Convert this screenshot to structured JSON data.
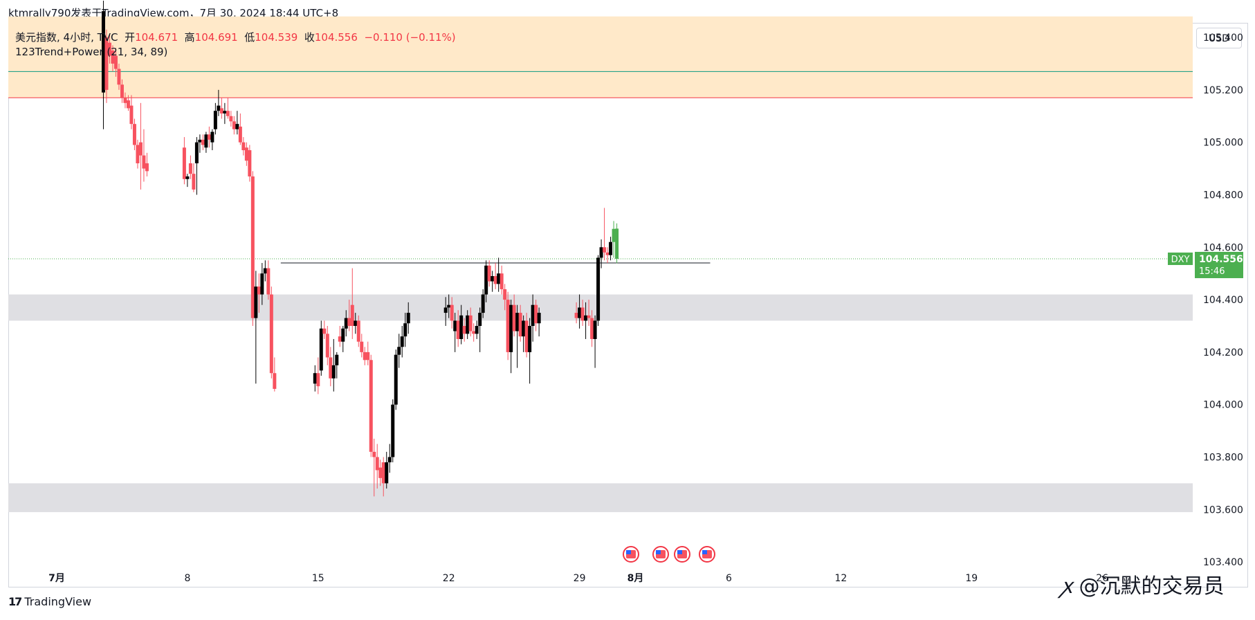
{
  "meta": {
    "title_line": "ktmrally790发表于TradingView.com，7月 30, 2024 18:44 UTC+8"
  },
  "legend": {
    "symbol": "美元指数, 4小时, TVC",
    "open_label": "开",
    "open": "104.671",
    "high_label": "高",
    "high": "104.691",
    "low_label": "低",
    "low": "104.539",
    "close_label": "收",
    "close": "104.556",
    "change": "−0.110 (−0.11%)",
    "indicator": "123Trend+Power (21, 34, 89)"
  },
  "currency_button": "USD",
  "price_tag": {
    "symbol": "DXY",
    "price": "104.556",
    "countdown": "15:46"
  },
  "brand": "TradingView",
  "watermark": "@沉默的交易员",
  "colors": {
    "up": "#000000",
    "down": "#f7525f",
    "last_up": "#4caf50",
    "price_tag": "#4caf50",
    "resistance_zone": "#ffe9c9",
    "support_zone": "#dfdfe3"
  },
  "icons": [
    "us-flag-event-icon",
    "us-flag-event-icon",
    "us-flag-event-icon",
    "us-flag-event-icon"
  ],
  "chart_data": {
    "type": "candlestick",
    "title": "",
    "xlabel": "",
    "ylabel": "",
    "ylim": [
      103.36,
      105.54
    ],
    "y_ticks": [
      "105.400",
      "105.200",
      "105.000",
      "104.800",
      "104.600",
      "104.400",
      "104.200",
      "104.000",
      "103.800",
      "103.600",
      "103.400"
    ],
    "x_tick_labels": [
      "7月",
      "8",
      "15",
      "22",
      "29",
      "8月",
      "6",
      "12",
      "19",
      "26"
    ],
    "x_tick_dates": [
      "2024-07-01",
      "2024-07-08",
      "2024-07-15",
      "2024-07-22",
      "2024-07-29",
      "2024-08-01",
      "2024-08-06",
      "2024-08-12",
      "2024-08-19",
      "2024-08-26"
    ],
    "zones": [
      {
        "kind": "resistance",
        "from": 105.17,
        "to": 105.48
      },
      {
        "kind": "support",
        "from": 104.32,
        "to": 104.42
      },
      {
        "kind": "support",
        "from": 103.59,
        "to": 103.7
      }
    ],
    "horizontal_lines": [
      {
        "price": 105.27,
        "color": "#089981"
      },
      {
        "price": 105.17,
        "color": "#f23645"
      },
      {
        "price": 104.556,
        "color": "#4caf50",
        "style": "dotted"
      },
      {
        "price": 104.54,
        "color": "#131722",
        "from": "2024-07-13",
        "to": "2024-08-05"
      }
    ],
    "ohlc_columns": [
      "date",
      "open",
      "high",
      "low",
      "close"
    ],
    "ohlc": [
      [
        "2024-07-03 12:00",
        105.19,
        105.54,
        105.05,
        105.5
      ],
      [
        "2024-07-03 16:00",
        105.4,
        105.43,
        105.15,
        105.2
      ],
      [
        "2024-07-03 20:00",
        105.38,
        105.41,
        105.3,
        105.33
      ],
      [
        "2024-07-04 00:00",
        105.35,
        105.37,
        105.27,
        105.3
      ],
      [
        "2024-07-04 04:00",
        105.33,
        105.36,
        105.25,
        105.28
      ],
      [
        "2024-07-04 08:00",
        105.28,
        105.3,
        105.2,
        105.22
      ],
      [
        "2024-07-04 12:00",
        105.22,
        105.24,
        105.15,
        105.17
      ],
      [
        "2024-07-04 16:00",
        105.17,
        105.19,
        105.13,
        105.15
      ],
      [
        "2024-07-04 20:00",
        105.16,
        105.18,
        105.12,
        105.13
      ],
      [
        "2024-07-05 00:00",
        105.14,
        105.18,
        105.05,
        105.07
      ],
      [
        "2024-07-05 04:00",
        105.07,
        105.09,
        104.97,
        104.99
      ],
      [
        "2024-07-05 08:00",
        104.99,
        105.01,
        104.9,
        104.92
      ],
      [
        "2024-07-05 12:00",
        105.0,
        105.15,
        104.82,
        104.95
      ],
      [
        "2024-07-05 16:00",
        104.95,
        105.05,
        104.85,
        104.9
      ],
      [
        "2024-07-05 20:00",
        104.92,
        104.96,
        104.87,
        104.89
      ],
      [
        "2024-07-07 20:00",
        104.98,
        105.02,
        104.84,
        104.86
      ],
      [
        "2024-07-08 00:00",
        104.86,
        104.88,
        104.83,
        104.87
      ],
      [
        "2024-07-08 04:00",
        104.92,
        104.95,
        104.86,
        104.88
      ],
      [
        "2024-07-08 08:00",
        104.88,
        104.92,
        104.81,
        104.82
      ],
      [
        "2024-07-08 12:00",
        104.92,
        105.02,
        104.8,
        105.0
      ],
      [
        "2024-07-08 16:00",
        105.0,
        105.03,
        104.96,
        105.01
      ],
      [
        "2024-07-08 20:00",
        105.01,
        105.03,
        104.97,
        104.99
      ],
      [
        "2024-07-09 00:00",
        104.98,
        105.04,
        104.96,
        105.03
      ],
      [
        "2024-07-09 04:00",
        105.03,
        105.06,
        104.98,
        105.01
      ],
      [
        "2024-07-09 08:00",
        105.0,
        105.05,
        104.97,
        105.04
      ],
      [
        "2024-07-09 12:00",
        105.05,
        105.15,
        105.03,
        105.12
      ],
      [
        "2024-07-09 16:00",
        105.12,
        105.2,
        105.1,
        105.14
      ],
      [
        "2024-07-09 20:00",
        105.13,
        105.17,
        105.09,
        105.11
      ],
      [
        "2024-07-10 00:00",
        105.11,
        105.15,
        105.07,
        105.12
      ],
      [
        "2024-07-10 04:00",
        105.12,
        105.17,
        105.09,
        105.1
      ],
      [
        "2024-07-10 08:00",
        105.1,
        105.12,
        105.06,
        105.08
      ],
      [
        "2024-07-10 12:00",
        105.08,
        105.1,
        105.03,
        105.05
      ],
      [
        "2024-07-10 16:00",
        105.05,
        105.12,
        105.03,
        105.07
      ],
      [
        "2024-07-10 20:00",
        105.06,
        105.11,
        104.99,
        105.0
      ],
      [
        "2024-07-11 00:00",
        105.0,
        105.02,
        104.95,
        104.97
      ],
      [
        "2024-07-11 04:00",
        104.98,
        105.0,
        104.91,
        104.93
      ],
      [
        "2024-07-11 08:00",
        104.97,
        104.99,
        104.85,
        104.87
      ],
      [
        "2024-07-11 12:00",
        104.87,
        104.89,
        104.3,
        104.33
      ],
      [
        "2024-07-11 16:00",
        104.33,
        104.51,
        104.08,
        104.45
      ],
      [
        "2024-07-11 20:00",
        104.45,
        104.5,
        104.35,
        104.42
      ],
      [
        "2024-07-12 00:00",
        104.42,
        104.54,
        104.38,
        104.5
      ],
      [
        "2024-07-12 04:00",
        104.5,
        104.55,
        104.47,
        104.52
      ],
      [
        "2024-07-12 08:00",
        104.52,
        104.55,
        104.4,
        104.42
      ],
      [
        "2024-07-12 12:00",
        104.42,
        104.45,
        104.1,
        104.12
      ],
      [
        "2024-07-12 16:00",
        104.12,
        104.18,
        104.05,
        104.06
      ],
      [
        "2024-07-14 20:00",
        104.08,
        104.15,
        104.05,
        104.12
      ],
      [
        "2024-07-15 00:00",
        104.12,
        104.18,
        104.04,
        104.07
      ],
      [
        "2024-07-15 04:00",
        104.13,
        104.32,
        104.11,
        104.29
      ],
      [
        "2024-07-15 08:00",
        104.29,
        104.32,
        104.25,
        104.27
      ],
      [
        "2024-07-15 12:00",
        104.27,
        104.3,
        104.15,
        104.18
      ],
      [
        "2024-07-15 16:00",
        104.18,
        104.22,
        104.07,
        104.1
      ],
      [
        "2024-07-15 20:00",
        104.1,
        104.25,
        104.05,
        104.15
      ],
      [
        "2024-07-16 00:00",
        104.15,
        104.2,
        104.1,
        104.19
      ],
      [
        "2024-07-16 04:00",
        104.26,
        104.3,
        104.22,
        104.24
      ],
      [
        "2024-07-16 08:00",
        104.24,
        104.3,
        104.2,
        104.29
      ],
      [
        "2024-07-16 12:00",
        104.29,
        104.36,
        104.26,
        104.33
      ],
      [
        "2024-07-16 16:00",
        104.33,
        104.4,
        104.28,
        104.3
      ],
      [
        "2024-07-16 20:00",
        104.38,
        104.52,
        104.25,
        104.3
      ],
      [
        "2024-07-17 00:00",
        104.3,
        104.35,
        104.27,
        104.32
      ],
      [
        "2024-07-17 04:00",
        104.32,
        104.34,
        104.22,
        104.24
      ],
      [
        "2024-07-17 08:00",
        104.24,
        104.27,
        104.18,
        104.2
      ],
      [
        "2024-07-17 12:00",
        104.2,
        104.22,
        104.15,
        104.17
      ],
      [
        "2024-07-17 16:00",
        104.2,
        104.24,
        104.15,
        104.17
      ],
      [
        "2024-07-17 20:00",
        104.17,
        104.19,
        103.8,
        103.82
      ],
      [
        "2024-07-18 00:00",
        103.82,
        103.87,
        103.65,
        103.8
      ],
      [
        "2024-07-18 04:00",
        103.8,
        103.85,
        103.68,
        103.75
      ],
      [
        "2024-07-18 08:00",
        103.76,
        103.79,
        103.69,
        103.72
      ],
      [
        "2024-07-18 12:00",
        103.78,
        103.8,
        103.65,
        103.7
      ],
      [
        "2024-07-18 16:00",
        103.7,
        103.82,
        103.68,
        103.78
      ],
      [
        "2024-07-18 20:00",
        103.78,
        103.85,
        103.74,
        103.8
      ],
      [
        "2024-07-19 00:00",
        103.8,
        104.02,
        103.78,
        104.0
      ],
      [
        "2024-07-19 04:00",
        104.0,
        104.21,
        103.98,
        104.19
      ],
      [
        "2024-07-19 08:00",
        104.19,
        104.27,
        104.14,
        104.22
      ],
      [
        "2024-07-19 12:00",
        104.22,
        104.3,
        104.18,
        104.26
      ],
      [
        "2024-07-19 16:00",
        104.26,
        104.35,
        104.22,
        104.31
      ],
      [
        "2024-07-19 20:00",
        104.31,
        104.39,
        104.27,
        104.35
      ],
      [
        "2024-07-21 20:00",
        104.35,
        104.41,
        104.3,
        104.37
      ],
      [
        "2024-07-22 00:00",
        104.37,
        104.42,
        104.33,
        104.38
      ],
      [
        "2024-07-22 04:00",
        104.38,
        104.41,
        104.29,
        104.32
      ],
      [
        "2024-07-22 08:00",
        104.28,
        104.35,
        104.2,
        104.32
      ],
      [
        "2024-07-22 12:00",
        104.32,
        104.36,
        104.22,
        104.25
      ],
      [
        "2024-07-22 16:00",
        104.25,
        104.38,
        104.23,
        104.34
      ],
      [
        "2024-07-22 20:00",
        104.3,
        104.33,
        104.24,
        104.27
      ],
      [
        "2024-07-23 00:00",
        104.27,
        104.36,
        104.25,
        104.34
      ],
      [
        "2024-07-23 04:00",
        104.34,
        104.37,
        104.26,
        104.28
      ],
      [
        "2024-07-23 08:00",
        104.28,
        104.31,
        104.24,
        104.27
      ],
      [
        "2024-07-23 12:00",
        104.27,
        104.32,
        104.25,
        104.3
      ],
      [
        "2024-07-23 16:00",
        104.3,
        104.37,
        104.2,
        104.35
      ],
      [
        "2024-07-23 20:00",
        104.35,
        104.44,
        104.33,
        104.42
      ],
      [
        "2024-07-24 00:00",
        104.42,
        104.55,
        104.39,
        104.53
      ],
      [
        "2024-07-24 04:00",
        104.53,
        104.55,
        104.45,
        104.47
      ],
      [
        "2024-07-24 08:00",
        104.47,
        104.51,
        104.43,
        104.49
      ],
      [
        "2024-07-24 12:00",
        104.49,
        104.54,
        104.44,
        104.46
      ],
      [
        "2024-07-24 16:00",
        104.46,
        104.56,
        104.43,
        104.5
      ],
      [
        "2024-07-24 20:00",
        104.5,
        104.53,
        104.42,
        104.44
      ],
      [
        "2024-07-25 00:00",
        104.44,
        104.46,
        104.36,
        104.4
      ],
      [
        "2024-07-25 04:00",
        104.4,
        104.43,
        104.17,
        104.2
      ],
      [
        "2024-07-25 08:00",
        104.2,
        104.4,
        104.12,
        104.38
      ],
      [
        "2024-07-25 12:00",
        104.38,
        104.42,
        104.26,
        104.28
      ],
      [
        "2024-07-25 16:00",
        104.28,
        104.38,
        104.14,
        104.35
      ],
      [
        "2024-07-25 20:00",
        104.35,
        104.38,
        104.24,
        104.26
      ],
      [
        "2024-07-26 00:00",
        104.26,
        104.34,
        104.2,
        104.32
      ],
      [
        "2024-07-26 04:00",
        104.32,
        104.35,
        104.18,
        104.2
      ],
      [
        "2024-07-26 08:00",
        104.2,
        104.33,
        104.08,
        104.3
      ],
      [
        "2024-07-26 12:00",
        104.3,
        104.42,
        104.24,
        104.38
      ],
      [
        "2024-07-26 16:00",
        104.38,
        104.4,
        104.28,
        104.31
      ],
      [
        "2024-07-26 20:00",
        104.31,
        104.37,
        104.26,
        104.35
      ],
      [
        "2024-07-28 20:00",
        104.35,
        104.39,
        104.31,
        104.33
      ],
      [
        "2024-07-29 00:00",
        104.33,
        104.42,
        104.29,
        104.37
      ],
      [
        "2024-07-29 04:00",
        104.37,
        104.4,
        104.3,
        104.32
      ],
      [
        "2024-07-29 08:00",
        104.32,
        104.39,
        104.25,
        104.34
      ],
      [
        "2024-07-29 12:00",
        104.34,
        104.4,
        104.3,
        104.33
      ],
      [
        "2024-07-29 16:00",
        104.33,
        104.36,
        104.22,
        104.25
      ],
      [
        "2024-07-29 20:00",
        104.25,
        104.34,
        104.14,
        104.32
      ],
      [
        "2024-07-30 00:00",
        104.32,
        104.57,
        104.3,
        104.56
      ],
      [
        "2024-07-30 04:00",
        104.56,
        104.63,
        104.52,
        104.6
      ],
      [
        "2024-07-30 08:00",
        104.6,
        104.75,
        104.55,
        104.58
      ],
      [
        "2024-07-30 12:00",
        104.58,
        104.6,
        104.54,
        104.57
      ],
      [
        "2024-07-30 16:00",
        104.57,
        104.64,
        104.55,
        104.62
      ],
      [
        "2024-07-30 20:00",
        104.62,
        104.7,
        104.56,
        104.67
      ],
      [
        "2024-07-31 00:00",
        104.671,
        104.691,
        104.539,
        104.556
      ]
    ]
  }
}
